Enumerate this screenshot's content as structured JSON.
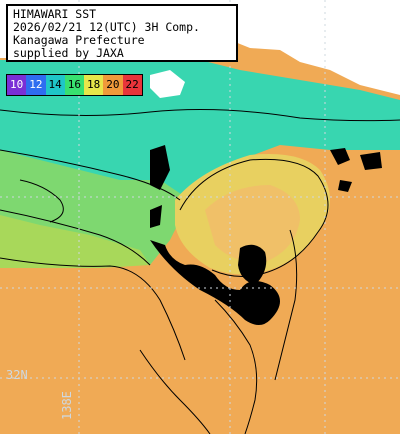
{
  "header": {
    "line1": "HIMAWARI SST",
    "line2": "2026/02/21 12(UTC) 3H Comp.",
    "line3": "Kanagawa Prefecture",
    "line4": "supplied by JAXA"
  },
  "legend": [
    {
      "label": "10",
      "color": "#7a2fd6",
      "text": "#ffffff"
    },
    {
      "label": "12",
      "color": "#2f6df0",
      "text": "#ffffff"
    },
    {
      "label": "14",
      "color": "#1fc6c8",
      "text": "#000000"
    },
    {
      "label": "16",
      "color": "#38e070",
      "text": "#000000"
    },
    {
      "label": "18",
      "color": "#e8e64a",
      "text": "#000000"
    },
    {
      "label": "20",
      "color": "#f09a3a",
      "text": "#000000"
    },
    {
      "label": "22",
      "color": "#e8343a",
      "text": "#000000"
    }
  ],
  "grid": {
    "lat_label": "32N",
    "lon_label": "138E"
  },
  "colors": {
    "land": "#ffffff",
    "cloud": "#000000",
    "cold_water": "#4ee08a",
    "mid_water": "#9fe06a",
    "warm_water": "#f0b25a",
    "hot_water": "#f09848",
    "contour": "#000000",
    "gridline": "#cfd8df"
  }
}
